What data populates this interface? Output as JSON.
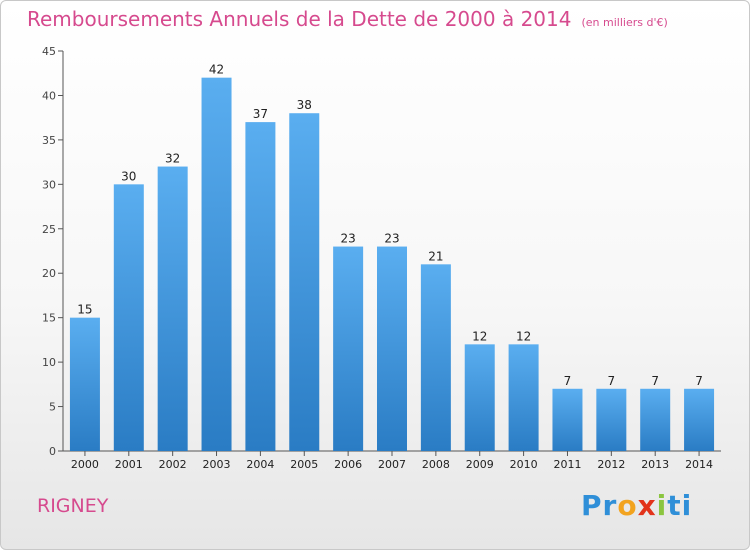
{
  "chart_data": {
    "type": "bar",
    "title": "Remboursements Annuels de la Dette de 2000 à 2014",
    "subtitle": "(en milliers d'€)",
    "categories": [
      "2000",
      "2001",
      "2002",
      "2003",
      "2004",
      "2005",
      "2006",
      "2007",
      "2008",
      "2009",
      "2010",
      "2011",
      "2012",
      "2013",
      "2014"
    ],
    "values": [
      15,
      30,
      32,
      42,
      37,
      38,
      23,
      23,
      21,
      12,
      12,
      7,
      7,
      7,
      7
    ],
    "ylim": [
      0,
      45
    ],
    "yticks": [
      0,
      5,
      10,
      15,
      20,
      25,
      30,
      35,
      40,
      45
    ],
    "grid": false,
    "bar_color_top": "#5aaef0",
    "bar_color_bottom": "#2a7cc4"
  },
  "commune": "RIGNEY",
  "logo": {
    "text": "Proxiti",
    "parts": [
      "Pr",
      "o",
      "x",
      "i",
      "ti"
    ]
  }
}
